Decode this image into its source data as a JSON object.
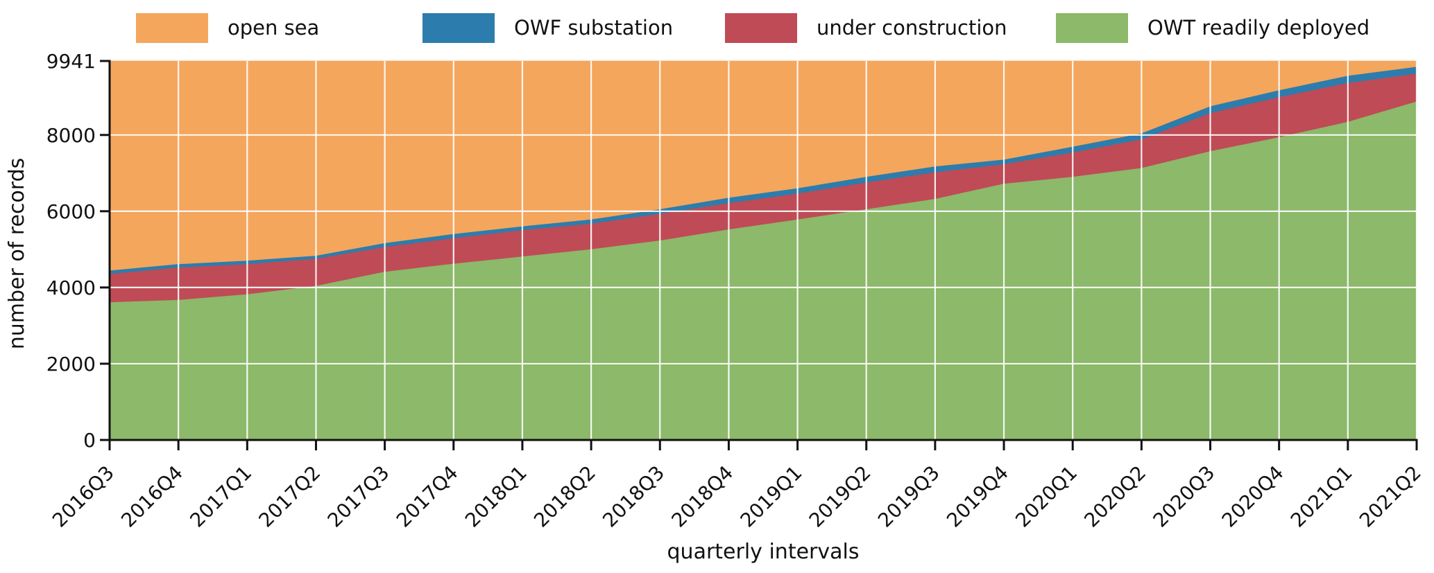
{
  "figure": {
    "background": "#ffffff",
    "axis_color": "#111111",
    "grid_color": "#ffffff"
  },
  "chart_data": {
    "type": "area",
    "stacked": true,
    "title": "",
    "xlabel": "quarterly intervals",
    "ylabel": "number of records",
    "legend_position": "top",
    "legend_order": [
      "open sea",
      "OWF substation",
      "under construction",
      "OWT readily deployed"
    ],
    "y_max": 9941,
    "stack_total": 9941,
    "y_ticks": [
      0,
      2000,
      4000,
      6000,
      8000,
      9941
    ],
    "y_gridlines": [
      2000,
      4000,
      6000,
      8000
    ],
    "categories": [
      "2016Q3",
      "2016Q4",
      "2017Q1",
      "2017Q2",
      "2017Q3",
      "2017Q4",
      "2018Q1",
      "2018Q2",
      "2018Q3",
      "2018Q4",
      "2019Q1",
      "2019Q2",
      "2019Q3",
      "2019Q4",
      "2020Q1",
      "2020Q2",
      "2020Q3",
      "2020Q4",
      "2021Q1",
      "2021Q2"
    ],
    "series": [
      {
        "label": "OWT readily deployed",
        "color": "#8CB96A",
        "values": [
          3620,
          3680,
          3830,
          4050,
          4420,
          4630,
          4820,
          5010,
          5240,
          5530,
          5790,
          6060,
          6330,
          6730,
          6910,
          7140,
          7580,
          7950,
          8350,
          8885
        ]
      },
      {
        "label": "under construction",
        "color": "#BF4B56",
        "values": [
          740,
          850,
          790,
          710,
          650,
          670,
          690,
          670,
          700,
          690,
          680,
          700,
          700,
          510,
          640,
          750,
          1000,
          1050,
          1020,
          730
        ]
      },
      {
        "label": "OWF substation",
        "color": "#2C7DAD",
        "values": [
          90,
          90,
          90,
          80,
          100,
          110,
          100,
          110,
          120,
          140,
          140,
          150,
          150,
          120,
          150,
          160,
          180,
          180,
          190,
          180
        ]
      },
      {
        "label": "open sea",
        "color": "#F4A65D",
        "values": [
          5491,
          5321,
          5231,
          5101,
          4771,
          4531,
          4331,
          4151,
          3881,
          3581,
          3331,
          3031,
          2761,
          2581,
          2241,
          1891,
          1181,
          761,
          381,
          146
        ]
      }
    ]
  }
}
